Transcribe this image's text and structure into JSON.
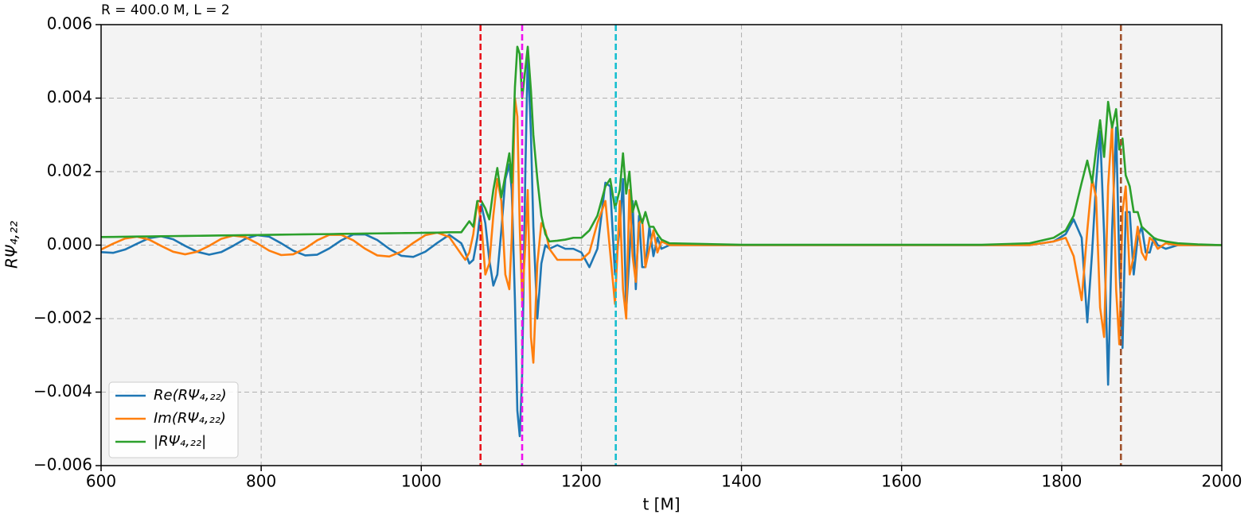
{
  "chart_data": {
    "type": "line",
    "title": "R = 400.0 M, L = 2",
    "x_label": "t [M]",
    "y_label": "RΨ₄,₂₂",
    "x": [
      600,
      615,
      630,
      645,
      660,
      675,
      690,
      705,
      720,
      735,
      750,
      765,
      780,
      795,
      810,
      825,
      840,
      855,
      870,
      885,
      900,
      915,
      930,
      945,
      960,
      975,
      990,
      1005,
      1020,
      1035,
      1050,
      1055,
      1060,
      1065,
      1070,
      1075,
      1080,
      1085,
      1090,
      1095,
      1100,
      1105,
      1110,
      1113,
      1117,
      1120,
      1123,
      1126,
      1130,
      1133,
      1137,
      1140,
      1145,
      1150,
      1155,
      1160,
      1170,
      1180,
      1190,
      1200,
      1210,
      1220,
      1230,
      1236,
      1242,
      1248,
      1252,
      1256,
      1260,
      1264,
      1268,
      1272,
      1276,
      1280,
      1285,
      1290,
      1295,
      1300,
      1310,
      1400,
      1500,
      1600,
      1700,
      1760,
      1790,
      1805,
      1815,
      1825,
      1832,
      1838,
      1843,
      1848,
      1853,
      1858,
      1863,
      1868,
      1872,
      1876,
      1880,
      1885,
      1890,
      1895,
      1900,
      1905,
      1910,
      1915,
      1920,
      1930,
      1945,
      1970,
      2000
    ],
    "series": [
      {
        "name": "Re(RΨ₄,₂₂)",
        "color": "#1f77b4",
        "values": [
          -0.00019,
          -0.00021,
          -0.00012,
          4e-05,
          0.00019,
          0.00024,
          0.00016,
          -2e-05,
          -0.00018,
          -0.00026,
          -0.00019,
          -2e-05,
          0.00017,
          0.00027,
          0.00023,
          5e-05,
          -0.00015,
          -0.00028,
          -0.00026,
          -9e-05,
          0.00013,
          0.00029,
          0.00029,
          0.00014,
          -0.0001,
          -0.00029,
          -0.00032,
          -0.00018,
          6e-05,
          0.00028,
          5e-05,
          -0.0002,
          -0.0005,
          -0.0004,
          0.0002,
          0.0011,
          0.0006,
          -0.0004,
          -0.0011,
          -0.0008,
          0.0004,
          0.0018,
          0.0022,
          0.0015,
          -0.0015,
          -0.0045,
          -0.0052,
          -0.0035,
          0.002,
          0.0052,
          0.003,
          0.0005,
          -0.002,
          -0.0005,
          0,
          -0.0001,
          0,
          -0.0001,
          -0.0001,
          -0.0002,
          -0.0006,
          -0.0001,
          0.0017,
          0.0016,
          -0.0008,
          0.0005,
          0.0018,
          -0.0018,
          -0.0003,
          0.0012,
          -0.0012,
          0.0008,
          -0.0006,
          -0.0006,
          0.0005,
          -0.0003,
          0.0002,
          -0.0001,
          0,
          0,
          0,
          0,
          0,
          0,
          0.0001,
          0.0003,
          0.0007,
          0.0002,
          -0.0021,
          -0.0002,
          0.0017,
          0.0031,
          0.0003,
          -0.0038,
          0.0004,
          0.0032,
          -0.0005,
          -0.0028,
          0.0009,
          0.0009,
          -0.0008,
          0.0002,
          0.0005,
          -0.0002,
          -0.0002,
          0.0002,
          0,
          -0.0001,
          0,
          0,
          0
        ]
      },
      {
        "name": "Im(RΨ₄,₂₂)",
        "color": "#ff7f0e",
        "values": [
          -0.00012,
          4e-05,
          0.00018,
          0.00023,
          0.00015,
          -2e-05,
          -0.00018,
          -0.00025,
          -0.00018,
          -2e-05,
          0.00017,
          0.00026,
          0.00022,
          5e-05,
          -0.00015,
          -0.00027,
          -0.00025,
          -9e-05,
          0.00013,
          0.00028,
          0.00028,
          0.00013,
          -0.0001,
          -0.00028,
          -0.00031,
          -0.00018,
          6e-05,
          0.00027,
          0.00034,
          0.00022,
          -0.00025,
          -0.0004,
          -0.0002,
          0.0003,
          0.0012,
          0.0006,
          -0.0008,
          -0.0005,
          0.0008,
          0.0018,
          0.0012,
          -0.0008,
          -0.0012,
          0.0002,
          0.004,
          0.0035,
          0.0005,
          -0.0015,
          0,
          0.0015,
          -0.0025,
          -0.0032,
          -0.0005,
          0.0006,
          0.0004,
          -0.0001,
          -0.0004,
          -0.0004,
          -0.0004,
          -0.0004,
          -0.0002,
          0.0006,
          0.0012,
          -0.0002,
          -0.0016,
          0.0012,
          -0.0012,
          -0.002,
          0.0015,
          -0.0003,
          -0.001,
          0.0006,
          0.0007,
          -0.0006,
          -0.0001,
          0.0004,
          -0.0002,
          0.0001,
          0,
          0,
          0,
          0,
          0,
          0,
          0.0001,
          0.0002,
          -0.0003,
          -0.0015,
          0.0004,
          0.0018,
          0.0013,
          -0.0017,
          -0.0025,
          0.0016,
          0.0033,
          -0.0012,
          -0.0027,
          0.0009,
          0.0016,
          -0.0008,
          -0.0003,
          0.0005,
          -0.0002,
          -0.0004,
          0.0002,
          0.0001,
          -0.0001,
          5e-05,
          0,
          0,
          0
        ]
      },
      {
        "name": "|RΨ₄,₂₂|",
        "color": "#2ca02c",
        "values": [
          0.00022,
          0.000224,
          0.000229,
          0.000233,
          0.000237,
          0.000241,
          0.000246,
          0.00025,
          0.000254,
          0.000259,
          0.000263,
          0.000267,
          0.000271,
          0.000276,
          0.00028,
          0.000284,
          0.000289,
          0.000293,
          0.000297,
          0.0003,
          0.000306,
          0.00031,
          0.000314,
          0.000319,
          0.000323,
          0.000327,
          0.00033,
          0.000336,
          0.00034,
          0.00035,
          0.00035,
          0.0005,
          0.00065,
          0.0005,
          0.0012,
          0.0012,
          0.001,
          0.0007,
          0.0015,
          0.0021,
          0.0013,
          0.0019,
          0.0025,
          0.0017,
          0.0043,
          0.0054,
          0.0052,
          0.004,
          0.0048,
          0.0054,
          0.0042,
          0.003,
          0.0018,
          0.0008,
          0.0003,
          0.0001,
          0.00012,
          0.00015,
          0.0002,
          0.0002,
          0.0004,
          0.0008,
          0.0016,
          0.0018,
          0.001,
          0.0015,
          0.0025,
          0.0014,
          0.002,
          0.0009,
          0.0012,
          0.0009,
          0.0006,
          0.0009,
          0.0005,
          0.0005,
          0.0003,
          0.00015,
          5e-05,
          1e-05,
          1e-05,
          1e-05,
          1e-05,
          5e-05,
          0.0002,
          0.0004,
          0.0008,
          0.0017,
          0.0023,
          0.0017,
          0.0026,
          0.0034,
          0.0024,
          0.0039,
          0.0032,
          0.0037,
          0.0026,
          0.0029,
          0.0019,
          0.0016,
          0.0009,
          0.0009,
          0.0005,
          0.0004,
          0.0003,
          0.0002,
          0.00015,
          0.0001,
          5e-05,
          2e-05,
          0
        ]
      }
    ],
    "vlines": [
      {
        "x": 1074,
        "color": "#e8141c"
      },
      {
        "x": 1126,
        "color": "#ee10ee"
      },
      {
        "x": 1243,
        "color": "#17becf"
      },
      {
        "x": 1874,
        "color": "#a0522d"
      }
    ],
    "xlim": [
      600,
      2000
    ],
    "xticks": [
      600,
      800,
      1000,
      1200,
      1400,
      1600,
      1800,
      2000
    ],
    "ylim": [
      -0.006,
      0.006
    ],
    "yticks": [
      {
        "value": -0.006,
        "label": "−0.006"
      },
      {
        "value": -0.004,
        "label": "−0.004"
      },
      {
        "value": -0.002,
        "label": "−0.002"
      },
      {
        "value": 0,
        "label": "0.000"
      },
      0.002,
      0.004,
      0.006
    ],
    "grid": true,
    "legend": "lower left"
  }
}
